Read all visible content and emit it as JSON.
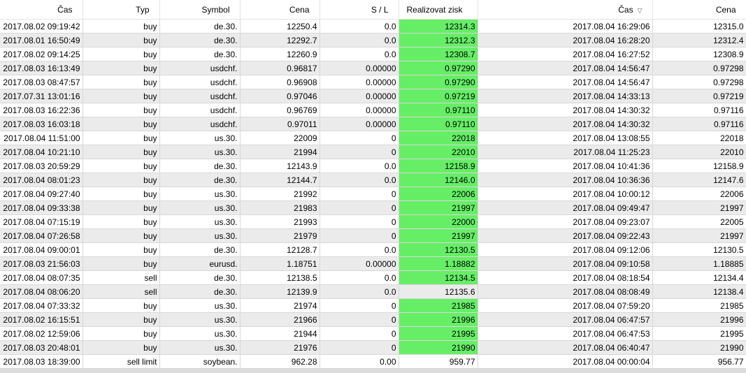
{
  "table": {
    "columns": [
      "Čas",
      "Typ",
      "Symbol",
      "Cena",
      "S / L",
      "Realizovat zisk",
      "Čas",
      "Cena"
    ],
    "highlight_color": "#66ee66",
    "rows": [
      [
        "2017.08.02 09:19:42",
        "buy",
        "de.30.",
        "12250.4",
        "0.0",
        "12314.3",
        "2017.08.04 16:29:06",
        "12315.0"
      ],
      [
        "2017.08.01 16:50:49",
        "buy",
        "de.30.",
        "12292.7",
        "0.0",
        "12312.3",
        "2017.08.04 16:28:20",
        "12312.4"
      ],
      [
        "2017.08.02 09:14:25",
        "buy",
        "de.30.",
        "12260.9",
        "0.0",
        "12308.7",
        "2017.08.04 16:27:52",
        "12308.9"
      ],
      [
        "2017.08.03 16:13:49",
        "buy",
        "usdchf.",
        "0.96817",
        "0.00000",
        "0.97290",
        "2017.08.04 14:56:47",
        "0.97298"
      ],
      [
        "2017.08.03 08:47:57",
        "buy",
        "usdchf.",
        "0.96908",
        "0.00000",
        "0.97290",
        "2017.08.04 14:56:47",
        "0.97298"
      ],
      [
        "2017.07.31 13:01:16",
        "buy",
        "usdchf.",
        "0.97046",
        "0.00000",
        "0.97219",
        "2017.08.04 14:33:13",
        "0.97219"
      ],
      [
        "2017.08.03 16:22:36",
        "buy",
        "usdchf.",
        "0.96769",
        "0.00000",
        "0.97110",
        "2017.08.04 14:30:32",
        "0.97116"
      ],
      [
        "2017.08.03 16:03:18",
        "buy",
        "usdchf.",
        "0.97011",
        "0.00000",
        "0.97110",
        "2017.08.04 14:30:32",
        "0.97116"
      ],
      [
        "2017.08.04 11:51:00",
        "buy",
        "us.30.",
        "22009",
        "0",
        "22018",
        "2017.08.04 13:08:55",
        "22018"
      ],
      [
        "2017.08.04 10:21:10",
        "buy",
        "us.30.",
        "21994",
        "0",
        "22010",
        "2017.08.04 11:25:23",
        "22010"
      ],
      [
        "2017.08.03 20:59:29",
        "buy",
        "de.30.",
        "12143.9",
        "0.0",
        "12158.9",
        "2017.08.04 10:41:36",
        "12158.9"
      ],
      [
        "2017.08.04 08:01:23",
        "buy",
        "de.30.",
        "12144.7",
        "0.0",
        "12146.0",
        "2017.08.04 10:36:36",
        "12147.6"
      ],
      [
        "2017.08.04 09:27:40",
        "buy",
        "us.30.",
        "21992",
        "0",
        "22006",
        "2017.08.04 10:00:12",
        "22006"
      ],
      [
        "2017.08.04 09:33:38",
        "buy",
        "us.30.",
        "21983",
        "0",
        "21997",
        "2017.08.04 09:49:47",
        "21997"
      ],
      [
        "2017.08.04 07:15:19",
        "buy",
        "us.30.",
        "21993",
        "0",
        "22000",
        "2017.08.04 09:23:07",
        "22005"
      ],
      [
        "2017.08.04 07:26:58",
        "buy",
        "us.30.",
        "21979",
        "0",
        "21997",
        "2017.08.04 09:22:43",
        "21997"
      ],
      [
        "2017.08.04 09:00:01",
        "buy",
        "de.30.",
        "12128.7",
        "0.0",
        "12130.5",
        "2017.08.04 09:12:06",
        "12130.5"
      ],
      [
        "2017.08.03 21:56:03",
        "buy",
        "eurusd.",
        "1.18751",
        "0.00000",
        "1.18882",
        "2017.08.04 09:10:58",
        "1.18885"
      ],
      [
        "2017.08.04 08:07:35",
        "sell",
        "de.30.",
        "12138.5",
        "0.0",
        "12134.5",
        "2017.08.04 08:18:54",
        "12134.4"
      ],
      [
        "2017.08.04 08:06:20",
        "sell",
        "de.30.",
        "12139.9",
        "0.0",
        "12135.6",
        "2017.08.04 08:08:49",
        "12138.4"
      ],
      [
        "2017.08.04 07:33:32",
        "buy",
        "us.30.",
        "21974",
        "0",
        "21985",
        "2017.08.04 07:59:20",
        "21985"
      ],
      [
        "2017.08.02 16:15:51",
        "buy",
        "us.30.",
        "21966",
        "0",
        "21996",
        "2017.08.04 06:47:57",
        "21996"
      ],
      [
        "2017.08.02 12:59:06",
        "buy",
        "us.30.",
        "21944",
        "0",
        "21995",
        "2017.08.04 06:47:53",
        "21995"
      ],
      [
        "2017.08.03 20:48:01",
        "buy",
        "us.30.",
        "21976",
        "0",
        "21990",
        "2017.08.04 06:40:47",
        "21990"
      ],
      [
        "2017.08.03 18:39:00",
        "sell limit",
        "soybean.",
        "962.28",
        "0.00",
        "959.77",
        "2017.08.04 00:00:04",
        "956.77"
      ]
    ],
    "highlighted": [
      true,
      true,
      true,
      true,
      true,
      true,
      true,
      true,
      true,
      true,
      true,
      true,
      true,
      true,
      true,
      true,
      true,
      true,
      true,
      false,
      true,
      true,
      true,
      true,
      false
    ]
  }
}
